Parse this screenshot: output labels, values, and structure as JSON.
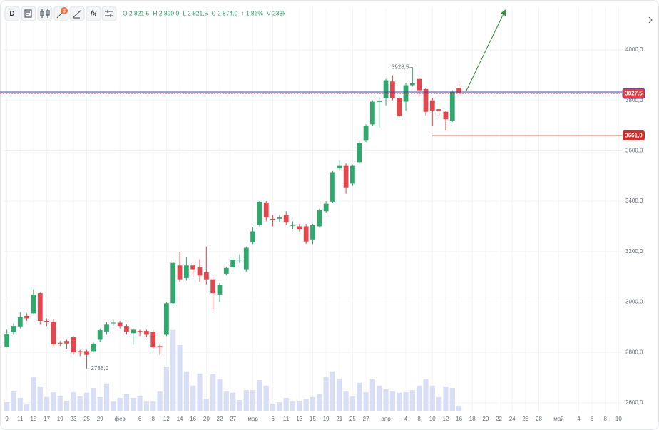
{
  "toolbar": {
    "interval": "D",
    "badge": "3",
    "indicators": "fx"
  },
  "chart_data": {
    "type": "candlestick",
    "ohlc_legend": [
      "O 2 821,5",
      "H 2 890,0",
      "L 2 821,5",
      "C 2 874,0",
      "↑ 1,86%",
      "V 233k"
    ],
    "categories": [
      "9",
      null,
      "11",
      null,
      "15",
      null,
      "17",
      null,
      "19",
      null,
      "23",
      null,
      "25",
      null,
      "29",
      null,
      null,
      "фев",
      null,
      null,
      "6",
      null,
      "8",
      null,
      "12",
      null,
      "14",
      null,
      "16",
      null,
      "20",
      null,
      "22",
      null,
      "27",
      null,
      null,
      "мар",
      null,
      null,
      "6",
      null,
      "11",
      null,
      "13",
      null,
      "15",
      null,
      "19",
      null,
      "21",
      null,
      "25",
      null,
      "27",
      null,
      null,
      "апр",
      null,
      null,
      "4",
      null,
      "8",
      null,
      "10",
      null,
      "12",
      null,
      "16",
      null,
      "18",
      null,
      "20",
      null,
      "22",
      null,
      "24",
      null,
      "26",
      null,
      "28",
      null,
      null,
      "май",
      null,
      null,
      "4",
      null,
      "6",
      null,
      "8",
      null,
      "10"
    ],
    "open": [
      2821.5,
      2880,
      2903,
      2945,
      2955,
      3035,
      2925,
      2922,
      2838,
      2845,
      2860,
      2805,
      2805,
      2805,
      2850,
      2882,
      2915,
      2918,
      2905,
      2876,
      2885,
      2885,
      2882,
      2825,
      2870,
      2995,
      3145,
      3095,
      3145,
      3137,
      3118,
      3090,
      3030,
      3112,
      3137,
      3165,
      3130,
      3237,
      3305,
      3395,
      3330,
      3330,
      3345,
      3305,
      3300,
      3300,
      3248,
      3300,
      3360,
      3398,
      3530,
      3540,
      3470,
      3555,
      3640,
      3705,
      3795,
      3810,
      3875,
      3810,
      3795,
      3860,
      3885,
      3845,
      3800,
      3765,
      3755,
      3720,
      3850,
      null,
      null,
      null,
      null,
      null,
      null,
      null,
      null,
      null,
      null,
      null,
      null,
      null,
      null,
      null,
      null,
      null,
      null,
      null,
      null,
      null,
      null,
      null,
      null
    ],
    "high": [
      2890,
      2915,
      2960,
      2955,
      3050,
      3040,
      2935,
      2930,
      2845,
      2850,
      2865,
      2810,
      2810,
      2840,
      2895,
      2920,
      2930,
      2925,
      2910,
      2895,
      2890,
      2890,
      2890,
      2830,
      3000,
      3160,
      3200,
      3180,
      3150,
      3170,
      3220,
      3100,
      3075,
      3140,
      3175,
      3190,
      3220,
      3295,
      3400,
      3400,
      3345,
      3345,
      3360,
      3320,
      3310,
      3310,
      3310,
      3370,
      3400,
      3520,
      3560,
      3550,
      3545,
      3640,
      3705,
      3800,
      3810,
      3885,
      3900,
      3815,
      3870,
      3928.5,
      3890,
      3850,
      3810,
      3770,
      3760,
      3840,
      3865,
      null,
      null,
      null,
      null,
      null,
      null,
      null,
      null,
      null,
      null,
      null,
      null,
      null,
      null,
      null,
      null,
      null,
      null,
      null,
      null,
      null,
      null,
      null,
      null
    ],
    "low": [
      2821.5,
      2870,
      2895,
      2925,
      2950,
      2910,
      2905,
      2825,
      2825,
      2815,
      2790,
      2785,
      2738,
      2800,
      2840,
      2870,
      2905,
      2895,
      2870,
      2830,
      2865,
      2860,
      2815,
      2790,
      2865,
      2990,
      3080,
      3085,
      3100,
      3080,
      3070,
      2965,
      3000,
      3105,
      3130,
      3155,
      3120,
      3230,
      3300,
      3320,
      3300,
      3315,
      3305,
      3290,
      3280,
      3230,
      3230,
      3295,
      3355,
      3395,
      3520,
      3430,
      3460,
      3550,
      3635,
      3700,
      3690,
      3780,
      3800,
      3730,
      3760,
      3855,
      3815,
      3740,
      3700,
      3740,
      3680,
      3715,
      3825,
      null,
      null,
      null,
      null,
      null,
      null,
      null,
      null,
      null,
      null,
      null,
      null,
      null,
      null,
      null,
      null,
      null,
      null,
      null,
      null,
      null,
      null,
      null,
      null
    ],
    "close": [
      2874,
      2905,
      2940,
      2935,
      3030,
      2925,
      2920,
      2832,
      2835,
      2835,
      2800,
      2800,
      2790,
      2835,
      2888,
      2910,
      2918,
      2905,
      2882,
      2890,
      2880,
      2870,
      2820,
      2820,
      2995,
      3155,
      3090,
      3145,
      3130,
      3105,
      3090,
      3035,
      3068,
      3135,
      3168,
      3168,
      3215,
      3280,
      3398,
      3335,
      3328,
      3335,
      3315,
      3305,
      3290,
      3240,
      3305,
      3365,
      3390,
      3515,
      3540,
      3455,
      3540,
      3630,
      3700,
      3795,
      3797,
      3880,
      3810,
      3740,
      3860,
      3868,
      3840,
      3755,
      3760,
      3760,
      3725,
      3835,
      3827.5,
      null,
      null,
      null,
      null,
      null,
      null,
      null,
      null,
      null,
      null,
      null,
      null,
      null,
      null,
      null,
      null,
      null,
      null,
      null,
      null,
      null,
      null,
      null,
      null
    ],
    "volume": [
      233,
      520,
      350,
      170,
      910,
      660,
      370,
      500,
      390,
      270,
      500,
      390,
      490,
      620,
      370,
      740,
      250,
      350,
      450,
      350,
      390,
      250,
      250,
      520,
      1200,
      2190,
      1780,
      1070,
      680,
      1010,
      330,
      990,
      870,
      520,
      490,
      290,
      560,
      560,
      830,
      680,
      190,
      230,
      350,
      250,
      250,
      330,
      370,
      450,
      910,
      1070,
      850,
      520,
      390,
      760,
      500,
      870,
      680,
      580,
      520,
      490,
      500,
      560,
      680,
      870,
      680,
      370,
      660,
      620,
      140,
      null,
      null,
      null,
      null,
      null,
      null,
      null,
      null,
      null,
      null,
      null,
      null,
      null,
      null,
      null,
      null,
      null,
      null,
      null,
      null,
      null,
      null,
      null,
      null
    ],
    "vlim": [
      0,
      2400
    ],
    "ylim": [
      2560,
      4170
    ],
    "yticks": [
      {
        "value": 2600,
        "label": "2600,0"
      },
      {
        "value": 2800,
        "label": "2800,0"
      },
      {
        "value": 3000,
        "label": "3000,0"
      },
      {
        "value": 3200,
        "label": "3200,0"
      },
      {
        "value": 3400,
        "label": "3400,0"
      },
      {
        "value": 3600,
        "label": "3600,0"
      },
      {
        "value": 3800,
        "label": "3800,0"
      },
      {
        "value": 4000,
        "label": "4000,0"
      }
    ],
    "grid": true,
    "up_color": "#32a76d",
    "down_color": "#e2474d",
    "volume_color": "#d9def7",
    "price_lines": [
      {
        "value": 3827.5,
        "label": "3827,5",
        "color": "#e53a3f"
      },
      {
        "value": 3661,
        "label": "3661,0",
        "color": "#c9302c"
      }
    ],
    "extremes": [
      {
        "value": 3928.5,
        "label": "3928,5"
      },
      {
        "value": 2738,
        "label": "2738,0"
      }
    ]
  }
}
